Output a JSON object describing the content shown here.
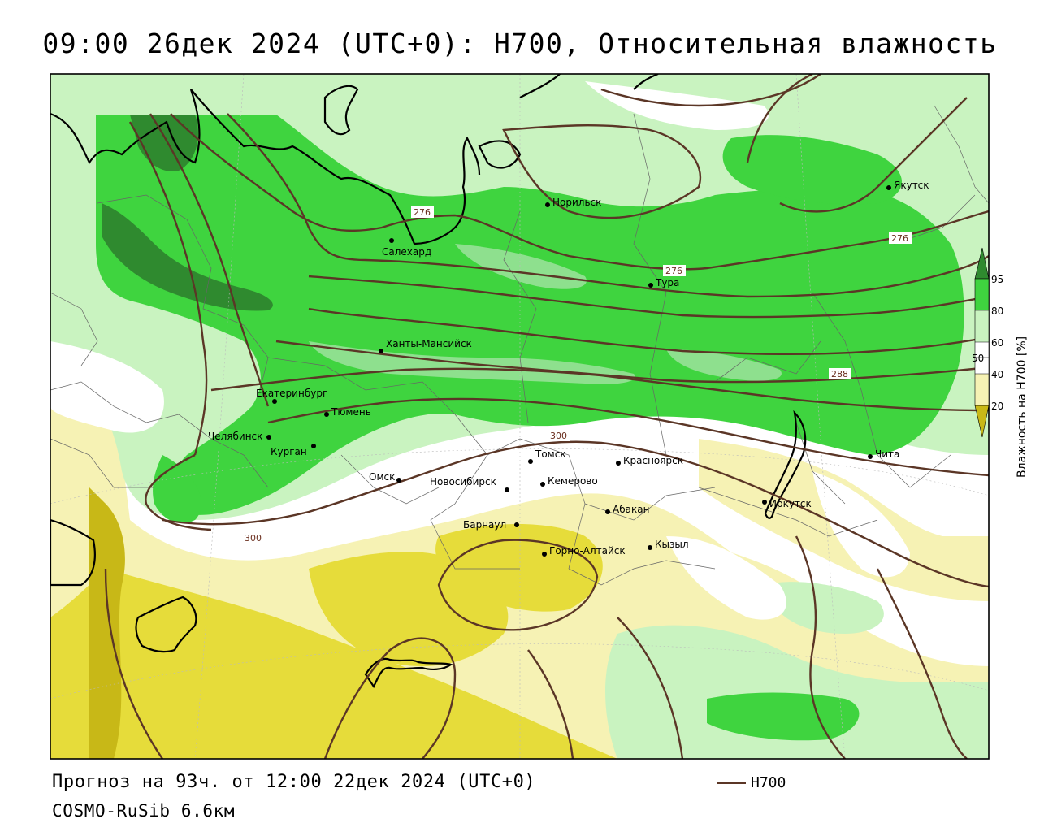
{
  "title": "09:00 26дек 2024 (UTC+0): H700, Относительная влажность",
  "footer": {
    "forecast": "Прогноз на 93ч. от 12:00 22дек 2024 (UTC+0)",
    "model": "COSMO-RuSib 6.6км"
  },
  "legend": {
    "line_label": "H700",
    "line_color": "#5b3626"
  },
  "colorbar": {
    "title": "Влажность на H700 [%]",
    "ticks": [
      "95",
      "80",
      "60",
      "50",
      "40",
      "20"
    ],
    "colors": {
      "dark_green": "#2f8a2f",
      "green": "#3fd43f",
      "mid_green": "#8ee08e",
      "light_green": "#c9f3c0",
      "white": "#ffffff",
      "light_yellow": "#f6f2b4",
      "yellow": "#e6dc3a",
      "dark_yellow": "#c8b817"
    }
  },
  "isohypse_labels": [
    "276",
    "276",
    "276",
    "288",
    "300",
    "300"
  ],
  "cities": [
    {
      "name": "Норильск"
    },
    {
      "name": "Якутск"
    },
    {
      "name": "Салехард"
    },
    {
      "name": "Тура"
    },
    {
      "name": "Ханты-Мансийск"
    },
    {
      "name": "Екатеринбург"
    },
    {
      "name": "Тюмень"
    },
    {
      "name": "Челябинск"
    },
    {
      "name": "Курган"
    },
    {
      "name": "Омск"
    },
    {
      "name": "Новосибирск"
    },
    {
      "name": "Томск"
    },
    {
      "name": "Кемерово"
    },
    {
      "name": "Красноярск"
    },
    {
      "name": "Барнаул"
    },
    {
      "name": "Абакан"
    },
    {
      "name": "Горно-Алтайск"
    },
    {
      "name": "Кызыл"
    },
    {
      "name": "Иркутск"
    },
    {
      "name": "Чита"
    }
  ]
}
